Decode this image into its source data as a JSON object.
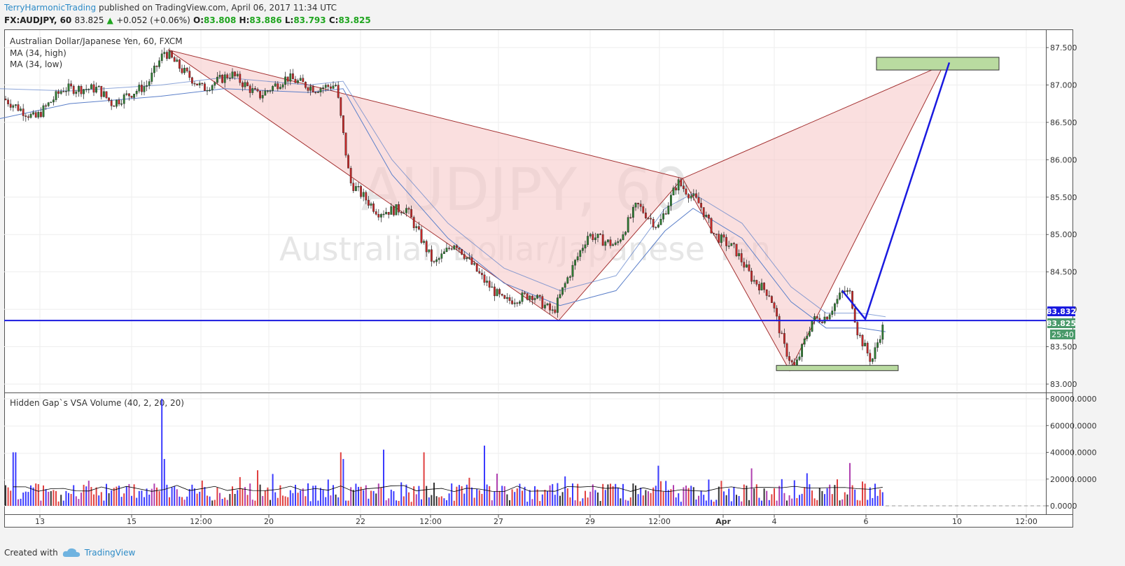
{
  "header": {
    "author": "TerryHarmonicTrading",
    "published_text": " published on TradingView.com, April 06, 2017 11:34 UTC",
    "symbol": "FX:AUDJPY, 60",
    "last": "83.825",
    "change_arrow": "▲",
    "change": "+0.052 (+0.06%)",
    "o_label": "O:",
    "o": "83.808",
    "h_label": "H:",
    "h": "83.886",
    "l_label": "L:",
    "l": "83.793",
    "c_label": "C:",
    "c": "83.825"
  },
  "legend": {
    "instrument": "Australian Dollar/Japanese Yen, 60, FXCM",
    "ma1": "MA (34, high)",
    "ma2": "MA (34, low)",
    "volume_indicator": "Hidden Gap`s VSA Volume (40, 2, 20, 20)"
  },
  "watermark": {
    "line1": "AUDJPY, 60",
    "line2": "Australian Dollar/Japanese Yen"
  },
  "price_tags": {
    "line_price": "83.832",
    "last_price": "83.825",
    "countdown": "25:40"
  },
  "footer": {
    "created_with": "Created with",
    "brand": "TradingView"
  },
  "colors": {
    "up_candle": "#2e7d32",
    "down_candle": "#c62828",
    "pattern_fill": "#f6c9c9",
    "pattern_stroke": "#a33030",
    "projection_line": "#1a1adf",
    "target_box": "#b9dba0",
    "ma_line": "#5b7fc9",
    "volume_up": "#3b3bff",
    "volume_down": "#e04040",
    "volume_avg": "#000000",
    "tag_blue": "#1a1adf",
    "tag_green": "#4a9a6a"
  },
  "chart_data": [
    {
      "type": "candlestick",
      "title": "AUDJPY, 60",
      "x_ticks": [
        "13",
        "15",
        "12:00",
        "20",
        "22",
        "12:00",
        "27",
        "29",
        "12:00",
        "Apr",
        "4",
        "6",
        "10",
        "12:00"
      ],
      "y_ticks": [
        "87.500",
        "87.000",
        "86.500",
        "86.000",
        "85.500",
        "85.000",
        "84.500",
        "84.000",
        "83.500",
        "83.000"
      ],
      "ylim": [
        82.95,
        87.65
      ],
      "close_path": [
        [
          0,
          86.85
        ],
        [
          50,
          86.55
        ],
        [
          90,
          86.95
        ],
        [
          140,
          86.95
        ],
        [
          160,
          86.75
        ],
        [
          210,
          87.0
        ],
        [
          235,
          87.45
        ],
        [
          260,
          87.2
        ],
        [
          290,
          86.95
        ],
        [
          330,
          87.15
        ],
        [
          370,
          86.85
        ],
        [
          410,
          87.1
        ],
        [
          450,
          86.95
        ],
        [
          480,
          87.0
        ],
        [
          500,
          85.7
        ],
        [
          540,
          85.3
        ],
        [
          580,
          85.35
        ],
        [
          620,
          84.6
        ],
        [
          650,
          84.9
        ],
        [
          690,
          84.4
        ],
        [
          720,
          84.1
        ],
        [
          760,
          84.2
        ],
        [
          790,
          83.95
        ],
        [
          810,
          84.4
        ],
        [
          840,
          85.0
        ],
        [
          880,
          84.85
        ],
        [
          910,
          85.4
        ],
        [
          940,
          85.1
        ],
        [
          968,
          85.7
        ],
        [
          1000,
          85.4
        ],
        [
          1020,
          85.0
        ],
        [
          1050,
          84.8
        ],
        [
          1075,
          84.4
        ],
        [
          1100,
          84.2
        ],
        [
          1120,
          83.5
        ],
        [
          1135,
          83.2
        ],
        [
          1160,
          83.85
        ],
        [
          1180,
          83.9
        ],
        [
          1205,
          84.25
        ],
        [
          1215,
          84.2
        ],
        [
          1225,
          83.7
        ],
        [
          1245,
          83.3
        ],
        [
          1260,
          83.75
        ]
      ],
      "ma_high": [
        [
          0,
          86.95
        ],
        [
          100,
          86.92
        ],
        [
          230,
          87.0
        ],
        [
          320,
          87.1
        ],
        [
          440,
          87.0
        ],
        [
          490,
          87.05
        ],
        [
          560,
          86.0
        ],
        [
          640,
          85.15
        ],
        [
          720,
          84.55
        ],
        [
          800,
          84.25
        ],
        [
          880,
          84.45
        ],
        [
          950,
          85.35
        ],
        [
          990,
          85.55
        ],
        [
          1060,
          85.15
        ],
        [
          1130,
          84.3
        ],
        [
          1180,
          83.95
        ],
        [
          1230,
          83.95
        ],
        [
          1265,
          83.9
        ]
      ],
      "ma_low": [
        [
          0,
          86.55
        ],
        [
          100,
          86.75
        ],
        [
          230,
          86.85
        ],
        [
          320,
          86.95
        ],
        [
          440,
          86.9
        ],
        [
          490,
          86.95
        ],
        [
          560,
          85.8
        ],
        [
          640,
          84.95
        ],
        [
          720,
          84.35
        ],
        [
          800,
          84.05
        ],
        [
          880,
          84.25
        ],
        [
          950,
          85.05
        ],
        [
          990,
          85.35
        ],
        [
          1060,
          84.95
        ],
        [
          1130,
          84.1
        ],
        [
          1180,
          83.75
        ],
        [
          1230,
          83.75
        ],
        [
          1265,
          83.7
        ]
      ],
      "harmonic_pattern": {
        "X": [
          240,
          87.47
        ],
        "A": [
          798,
          83.85
        ],
        "B": [
          975,
          85.75
        ],
        "C": [
          1128,
          83.18
        ],
        "D": [
          1348,
          87.27
        ]
      },
      "projection": {
        "from": [
          1203,
          84.25
        ],
        "via": [
          1236,
          83.87
        ],
        "to": [
          1356,
          87.3
        ]
      },
      "horizontal_line": 83.85,
      "target_zone": {
        "price_top": 87.37,
        "price_bottom": 87.2,
        "x_start": 1252,
        "x_end": 1427
      },
      "support_zone": {
        "price_top": 83.25,
        "price_bottom": 83.18,
        "x_start": 1109,
        "x_end": 1283
      }
    },
    {
      "type": "bar",
      "title": "Hidden Gap`s VSA Volume (40, 2, 20, 20)",
      "y_ticks": [
        "80000.0000",
        "60000.0000",
        "40000.0000",
        "20000.0000",
        "0.0000"
      ],
      "ylim": [
        0,
        80000
      ],
      "spikes": [
        [
          18,
          40000
        ],
        [
          22,
          40000
        ],
        [
          232,
          80000
        ],
        [
          235,
          35000
        ],
        [
          488,
          40000
        ],
        [
          492,
          35000
        ],
        [
          548,
          42000
        ],
        [
          606,
          40000
        ],
        [
          692,
          45000
        ],
        [
          940,
          30000
        ],
        [
          1075,
          28000
        ],
        [
          1215,
          32000
        ]
      ],
      "baseline_avg": 13000
    }
  ]
}
